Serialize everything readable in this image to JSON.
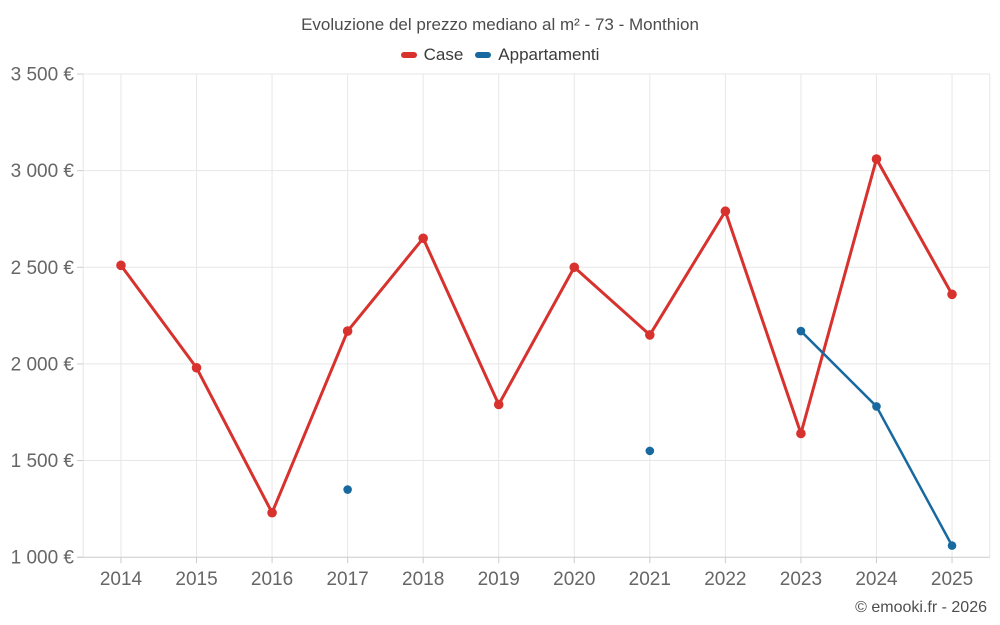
{
  "chart_data": {
    "type": "line",
    "title": "Evoluzione del prezzo mediano al m² - 73 - Monthion",
    "categories": [
      "2014",
      "2015",
      "2016",
      "2017",
      "2018",
      "2019",
      "2020",
      "2021",
      "2022",
      "2023",
      "2024",
      "2025"
    ],
    "series": [
      {
        "name": "Case",
        "color": "#d7322e",
        "values": [
          2510,
          1980,
          1230,
          2170,
          2650,
          1790,
          2500,
          2150,
          2790,
          1640,
          3060,
          2360
        ]
      },
      {
        "name": "Appartamenti",
        "color": "#17699f",
        "values": [
          null,
          null,
          null,
          1350,
          null,
          null,
          null,
          1550,
          null,
          2170,
          1780,
          1060
        ]
      }
    ],
    "xlabel": "",
    "ylabel": "",
    "y_axis": {
      "range": [
        1000,
        3500
      ],
      "tick_values": [
        1000,
        1500,
        2000,
        2500,
        3000,
        3500
      ],
      "tick_labels": [
        "1 000 €",
        "1 500 €",
        "2 000 €",
        "2 500 €",
        "3 000 €",
        "3 500 €"
      ]
    },
    "grid": true,
    "legend_position": "top"
  },
  "footer": "© emooki.fr - 2026"
}
